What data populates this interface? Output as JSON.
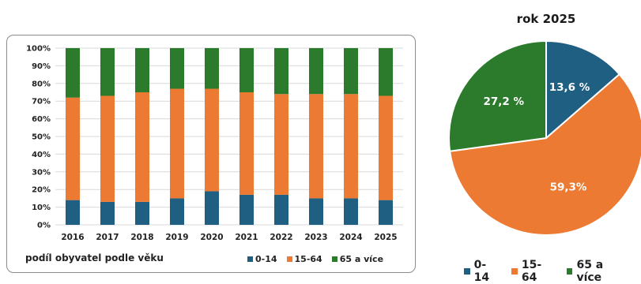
{
  "chart_data": [
    {
      "type": "bar",
      "stacked": "percent",
      "categories": [
        "2016",
        "2017",
        "2018",
        "2019",
        "2020",
        "2021",
        "2022",
        "2023",
        "2024",
        "2025"
      ],
      "series": [
        {
          "name": "0-14",
          "color": "#1f5f82",
          "values": [
            14,
            13,
            13,
            15,
            19,
            17,
            17,
            15,
            15,
            14
          ]
        },
        {
          "name": "15-64",
          "color": "#ec7a32",
          "values": [
            58,
            60,
            62,
            62,
            58,
            58,
            57,
            59,
            59,
            59
          ]
        },
        {
          "name": "65 a více",
          "color": "#2c7a2c",
          "values": [
            28,
            27,
            25,
            23,
            23,
            25,
            26,
            26,
            26,
            27
          ]
        }
      ],
      "yticks": [
        "0%",
        "10%",
        "20%",
        "30%",
        "40%",
        "50%",
        "60%",
        "70%",
        "80%",
        "90%",
        "100%"
      ],
      "ylim": [
        0,
        100
      ],
      "grid": true,
      "caption": "podíl obyvatel podle věku",
      "legend": "bottom-right"
    },
    {
      "type": "pie",
      "title": "rok 2025",
      "slices": [
        {
          "name": "0-14",
          "value": 13.6,
          "label": "13,6 %",
          "color": "#1f5f82"
        },
        {
          "name": "15-64",
          "value": 59.3,
          "label": "59,3%",
          "color": "#ec7a32"
        },
        {
          "name": "65 a více",
          "value": 27.2,
          "label": "27,2 %",
          "color": "#2c7a2c"
        }
      ],
      "legend": "bottom"
    }
  ]
}
